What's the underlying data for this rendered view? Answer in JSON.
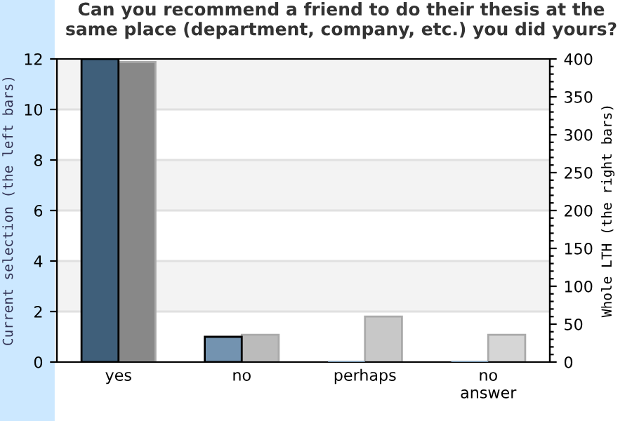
{
  "chart_data": {
    "type": "bar",
    "title": "Can you recommend a friend to do their thesis at the same place (department, company, etc.) you did yours?",
    "categories": [
      "yes",
      "no",
      "perhaps",
      "no\nanswer"
    ],
    "series": [
      {
        "colors": [
          "#3f5f7a",
          "#7393b0",
          "#7393b0",
          "#7393b0"
        ],
        "values": [
          12,
          1,
          0,
          0
        ]
      },
      {
        "colors": [
          "#888888",
          "#bbbbbb",
          "#c8c8c8",
          "#d6d6d6"
        ],
        "values": [
          396,
          36,
          60,
          36
        ],
        "axis": "y2"
      }
    ],
    "ylabel": "Current selection (the left bars)",
    "y2label": "Whole LTH (the right bars)",
    "ylim": [
      0,
      12
    ],
    "yticks": [
      0,
      2,
      4,
      6,
      8,
      10,
      12
    ],
    "y2lim": [
      0,
      400
    ],
    "y2ticks": [
      0,
      {
        "value": 10,
        "label": null
      },
      {
        "value": 20,
        "label": null
      },
      {
        "value": 30,
        "label": null
      },
      {
        "value": 40,
        "label": null
      },
      50,
      {
        "value": 60,
        "label": null
      },
      {
        "value": 70,
        "label": null
      },
      {
        "value": 80,
        "label": null
      },
      {
        "value": 90,
        "label": null
      },
      100,
      {
        "value": 110,
        "label": null
      },
      {
        "value": 120,
        "label": null
      },
      {
        "value": 130,
        "label": null
      },
      {
        "value": 140,
        "label": null
      },
      150,
      {
        "value": 160,
        "label": null
      },
      {
        "value": 170,
        "label": null
      },
      {
        "value": 180,
        "label": null
      },
      {
        "value": 190,
        "label": null
      },
      200,
      {
        "value": 210,
        "label": null
      },
      {
        "value": 220,
        "label": null
      },
      {
        "value": 230,
        "label": null
      },
      {
        "value": 240,
        "label": null
      },
      250,
      {
        "value": 260,
        "label": null
      },
      {
        "value": 270,
        "label": null
      },
      {
        "value": 280,
        "label": null
      },
      {
        "value": 290,
        "label": null
      },
      300,
      {
        "value": 310,
        "label": null
      },
      {
        "value": 320,
        "label": null
      },
      {
        "value": 330,
        "label": null
      },
      {
        "value": 340,
        "label": null
      },
      350,
      {
        "value": 360,
        "label": null
      },
      {
        "value": 370,
        "label": null
      },
      {
        "value": 380,
        "label": null
      },
      {
        "value": 390,
        "label": null
      },
      400
    ],
    "grid": "y",
    "legend": false
  }
}
